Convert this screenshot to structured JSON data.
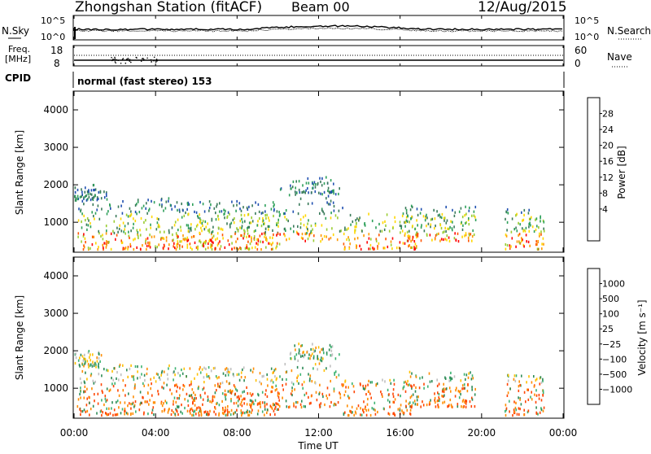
{
  "header": {
    "station": "Zhongshan Station (fitACF)",
    "beam": "Beam 00",
    "date": "12/Aug/2015",
    "nsky_label": "N.Sky",
    "nsearch_label": "N.Search",
    "freq_label": "Freq.",
    "freq_unit": "[MHz]",
    "nave_label": "Nave",
    "cpid_label": "CPID",
    "cpid_text": "normal (fast stereo) 153",
    "top_left_ticks": [
      "10^5",
      "10^0"
    ],
    "top_right_ticks": [
      "10^5",
      "10^0"
    ],
    "freq_ticks": [
      "18",
      "8"
    ],
    "nave_ticks": [
      "60",
      "0"
    ]
  },
  "chart_data": [
    {
      "type": "heatmap",
      "panel": "power",
      "xlabel": "Time UT",
      "ylabel": "Slant Range [km]",
      "y_ticks": [
        "1000",
        "2000",
        "3000",
        "4000"
      ],
      "x_ticks": [
        "00:00",
        "04:00",
        "08:00",
        "12:00",
        "16:00",
        "20:00",
        "00:00"
      ],
      "colorbar_label": "Power [dB]",
      "colorbar_ticks": [
        "28",
        "24",
        "20",
        "16",
        "12",
        "8",
        "4"
      ],
      "colors": [
        "#0000ff",
        "#1f4fb0",
        "#3a7a5a",
        "#2ea05a",
        "#9acd32",
        "#ffd700",
        "#ff9900",
        "#ff5500",
        "#ff0000"
      ]
    },
    {
      "type": "heatmap",
      "panel": "velocity",
      "xlabel": "Time UT",
      "ylabel": "Slant Range [km]",
      "y_ticks": [
        "1000",
        "2000",
        "3000",
        "4000"
      ],
      "x_ticks": [
        "00:00",
        "04:00",
        "08:00",
        "12:00",
        "16:00",
        "20:00",
        "00:00"
      ],
      "colorbar_label": "Velocity [m s⁻¹]",
      "colorbar_ticks": [
        "1000",
        "500",
        "100",
        "25",
        "−25",
        "−100",
        "−500",
        "−1000"
      ],
      "colors": [
        "#1a3aa8",
        "#2a6db0",
        "#2e8b57",
        "#3cb371",
        "#bfbfbf",
        "#ffc000",
        "#ff8c00",
        "#ff4500",
        "#e00000"
      ]
    }
  ]
}
